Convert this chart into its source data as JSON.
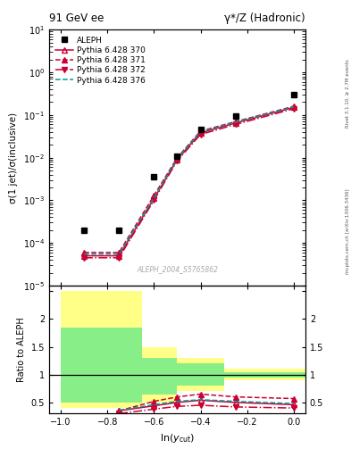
{
  "title_left": "91 GeV ee",
  "title_right": "γ*/Z (Hadronic)",
  "ylabel_main": "σ(1 jet)/σ(inclusive)",
  "ylabel_ratio": "Ratio to ALEPH",
  "xlabel": "ln(y_{cut})",
  "right_label_top": "Rivet 3.1.10, ≥ 2.7M events",
  "right_label_bottom": "mcplots.cern.ch [arXiv:1306.3436]",
  "watermark": "ALEPH_2004_S5765862",
  "ylim_main": [
    1e-05,
    10
  ],
  "xlim": [
    -1.05,
    0.05
  ],
  "ratio_ylim": [
    0.3,
    2.6
  ],
  "aleph_x": [
    -0.9,
    -0.75,
    -0.6,
    -0.5,
    -0.4,
    -0.25,
    0.0
  ],
  "aleph_y": [
    0.0002,
    0.0002,
    0.0035,
    0.011,
    0.045,
    0.095,
    0.3
  ],
  "py370_x": [
    -0.9,
    -0.75,
    -0.6,
    -0.5,
    -0.4,
    -0.25,
    0.0
  ],
  "py370_y": [
    5e-05,
    5e-05,
    0.0011,
    0.009,
    0.038,
    0.065,
    0.15
  ],
  "py371_x": [
    -0.9,
    -0.75,
    -0.6,
    -0.5,
    -0.4,
    -0.25,
    0.0
  ],
  "py371_y": [
    6e-05,
    6e-05,
    0.0013,
    0.01,
    0.042,
    0.07,
    0.16
  ],
  "py372_x": [
    -0.9,
    -0.75,
    -0.6,
    -0.5,
    -0.4,
    -0.25,
    0.0
  ],
  "py372_y": [
    4.5e-05,
    4.5e-05,
    0.001,
    0.0085,
    0.035,
    0.06,
    0.14
  ],
  "py376_x": [
    -0.9,
    -0.75,
    -0.6,
    -0.5,
    -0.4,
    -0.25,
    0.0
  ],
  "py376_y": [
    5.5e-05,
    5.5e-05,
    0.00115,
    0.0095,
    0.04,
    0.068,
    0.155
  ],
  "color_370": "#cc0033",
  "color_371": "#cc0033",
  "color_372": "#cc0033",
  "color_376": "#009999",
  "band_x_edges": [
    -1.0,
    -0.85,
    -0.65,
    -0.5,
    -0.3,
    0.05
  ],
  "yellow_tops": [
    2.5,
    2.5,
    1.5,
    1.3,
    1.1,
    1.05
  ],
  "yellow_bots": [
    0.4,
    0.4,
    0.5,
    0.7,
    0.9,
    0.95
  ],
  "green_tops": [
    1.85,
    1.85,
    1.3,
    1.2,
    1.05,
    1.02
  ],
  "green_bots": [
    0.5,
    0.5,
    0.65,
    0.8,
    0.95,
    0.98
  ],
  "ratio_py370_x": [
    -0.75,
    -0.6,
    -0.5,
    -0.4,
    -0.25,
    0.0
  ],
  "ratio_py370_y": [
    0.35,
    0.44,
    0.5,
    0.54,
    0.5,
    0.46
  ],
  "ratio_py371_x": [
    -0.75,
    -0.6,
    -0.5,
    -0.4,
    -0.25,
    0.0
  ],
  "ratio_py371_y": [
    0.35,
    0.52,
    0.6,
    0.65,
    0.6,
    0.57
  ],
  "ratio_py372_x": [
    -0.75,
    -0.6,
    -0.5,
    -0.4,
    -0.25,
    0.0
  ],
  "ratio_py372_y": [
    0.3,
    0.38,
    0.43,
    0.45,
    0.42,
    0.4
  ],
  "ratio_py376_x": [
    -0.75,
    -0.6,
    -0.5,
    -0.4,
    -0.25,
    0.0
  ],
  "ratio_py376_y": [
    0.36,
    0.46,
    0.52,
    0.55,
    0.52,
    0.48
  ]
}
